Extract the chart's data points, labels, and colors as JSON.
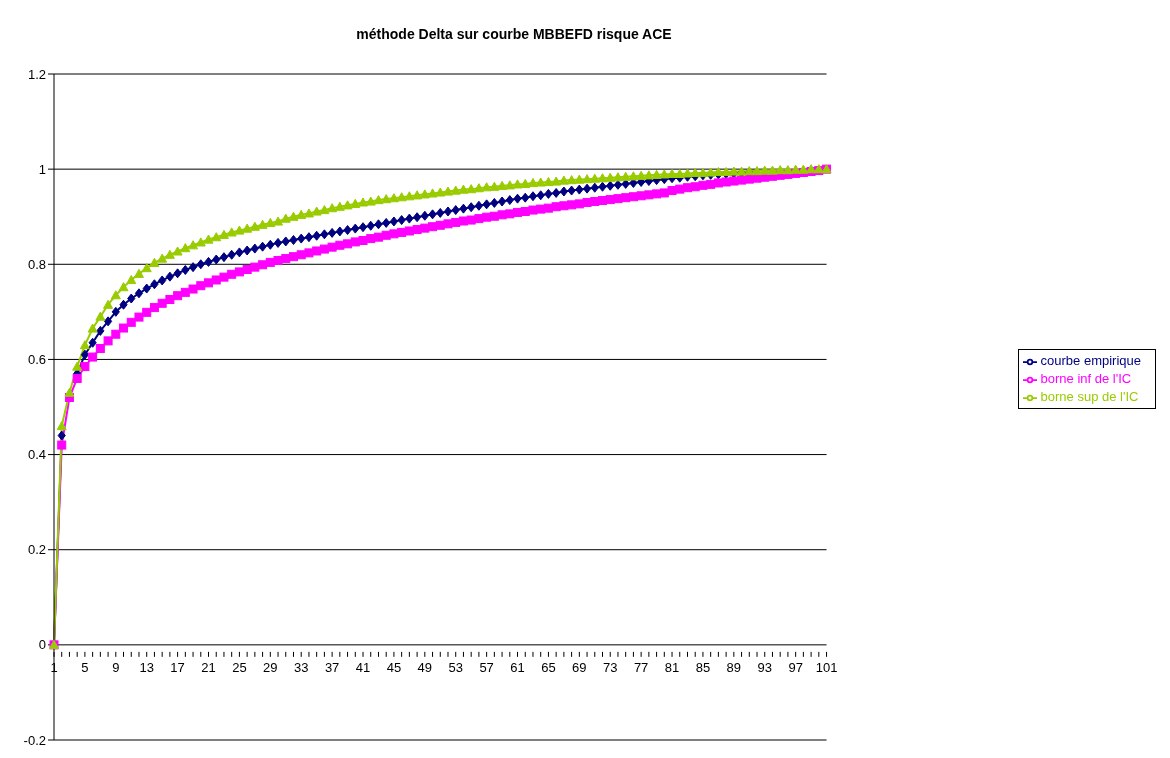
{
  "chart_data": {
    "type": "line",
    "title": "méthode Delta sur courbe MBBEFD risque ACE",
    "categories": [
      "1",
      null,
      null,
      null,
      "5",
      null,
      null,
      null,
      "9",
      null,
      null,
      null,
      "13",
      null,
      null,
      null,
      "17",
      null,
      null,
      null,
      "21",
      null,
      null,
      null,
      "25",
      null,
      null,
      null,
      "29",
      null,
      null,
      null,
      "33",
      null,
      null,
      null,
      "37",
      null,
      null,
      null,
      "41",
      null,
      null,
      null,
      "45",
      null,
      null,
      null,
      "49",
      null,
      null,
      null,
      "53",
      null,
      null,
      null,
      "57",
      null,
      null,
      null,
      "61",
      null,
      null,
      null,
      "65",
      null,
      null,
      null,
      "69",
      null,
      null,
      null,
      "73",
      null,
      null,
      null,
      "77",
      null,
      null,
      null,
      "81",
      null,
      null,
      null,
      "85",
      null,
      null,
      null,
      "89",
      null,
      null,
      null,
      "93",
      null,
      null,
      null,
      "97",
      null,
      null,
      null,
      "101"
    ],
    "series": [
      {
        "name": "courbe empirique",
        "color": "#000080",
        "marker": "diamond",
        "values": [
          0,
          0.44,
          null,
          0.57,
          0.61,
          0.635,
          0.66,
          0.68,
          0.7,
          0.715,
          0.728,
          0.739,
          0.749,
          0.758,
          0.766,
          0.774,
          0.781,
          0.788,
          0.794,
          0.8,
          0.805,
          0.81,
          0.815,
          0.82,
          0.825,
          0.829,
          0.833,
          0.837,
          0.841,
          0.845,
          0.848,
          0.851,
          0.854,
          0.857,
          0.86,
          0.863,
          0.866,
          0.869,
          0.872,
          0.875,
          0.878,
          0.881,
          0.884,
          0.887,
          0.89,
          0.893,
          0.896,
          0.899,
          0.902,
          0.905,
          0.908,
          0.911,
          0.914,
          0.917,
          0.92,
          0.923,
          0.926,
          0.929,
          0.932,
          0.935,
          0.938,
          0.94,
          0.943,
          0.945,
          0.948,
          0.95,
          0.953,
          0.955,
          0.957,
          0.959,
          0.961,
          0.963,
          0.965,
          0.967,
          0.969,
          0.971,
          0.973,
          0.975,
          0.977,
          0.979,
          0.981,
          0.982,
          0.984,
          0.985,
          0.987,
          0.988,
          0.989,
          0.99,
          0.991,
          0.992,
          0.993,
          null,
          null,
          null,
          null,
          null,
          null,
          null,
          null,
          null,
          null
        ]
      },
      {
        "name": "borne inf de l'IC",
        "color": "#ff00ff",
        "marker": "square",
        "values": [
          0,
          0.42,
          0.52,
          0.56,
          0.585,
          0.605,
          0.623,
          0.639,
          0.653,
          0.666,
          0.678,
          0.689,
          0.699,
          0.709,
          0.718,
          0.726,
          0.734,
          0.741,
          0.748,
          0.755,
          0.761,
          0.767,
          0.773,
          0.779,
          0.784,
          0.789,
          0.794,
          0.799,
          0.804,
          0.808,
          0.812,
          0.816,
          0.82,
          0.824,
          0.828,
          0.832,
          0.836,
          0.84,
          0.843,
          0.847,
          0.85,
          0.854,
          0.857,
          0.861,
          0.864,
          0.867,
          0.87,
          0.873,
          0.876,
          0.879,
          0.882,
          0.885,
          0.888,
          0.891,
          0.893,
          0.896,
          0.899,
          0.901,
          0.904,
          0.906,
          0.909,
          0.911,
          0.914,
          0.916,
          0.918,
          0.921,
          0.923,
          0.925,
          0.927,
          0.93,
          0.932,
          0.934,
          0.936,
          0.938,
          0.94,
          0.942,
          0.944,
          0.946,
          0.948,
          0.95,
          0.955,
          0.958,
          0.961,
          0.963,
          0.966,
          0.968,
          0.971,
          0.973,
          0.975,
          0.977,
          0.979,
          0.981,
          0.983,
          0.985,
          0.987,
          0.989,
          0.991,
          0.993,
          0.995,
          0.997,
          1
        ]
      },
      {
        "name": "borne sup de l'IC",
        "color": "#99cc00",
        "marker": "triangle",
        "values": [
          0,
          0.46,
          0.53,
          0.585,
          0.63,
          0.665,
          0.69,
          0.715,
          0.735,
          0.752,
          0.767,
          0.78,
          0.792,
          0.803,
          0.812,
          0.82,
          0.827,
          0.834,
          0.84,
          0.846,
          0.852,
          0.857,
          0.862,
          0.867,
          0.871,
          0.875,
          0.879,
          0.883,
          0.887,
          0.89,
          0.896,
          0.9,
          0.904,
          0.907,
          0.911,
          0.914,
          0.918,
          0.921,
          0.924,
          0.927,
          0.93,
          0.932,
          0.935,
          0.937,
          0.939,
          0.941,
          0.943,
          0.945,
          0.947,
          0.949,
          0.951,
          0.953,
          0.955,
          0.957,
          0.958,
          0.96,
          0.962,
          0.963,
          0.965,
          0.966,
          0.968,
          0.969,
          0.971,
          0.972,
          0.973,
          0.974,
          0.976,
          0.977,
          0.978,
          0.979,
          0.98,
          0.981,
          0.982,
          0.983,
          0.984,
          0.985,
          0.986,
          0.987,
          0.988,
          0.989,
          0.99,
          0.99,
          0.991,
          0.992,
          0.992,
          0.993,
          0.994,
          0.994,
          0.995,
          0.995,
          0.996,
          0.996,
          0.997,
          0.997,
          0.998,
          0.998,
          0.999,
          0.999,
          1,
          1,
          1
        ]
      }
    ],
    "ylim": [
      -0.2,
      1.2
    ],
    "yticks": [
      -0.2,
      0,
      0.2,
      0.4,
      0.6,
      0.8,
      1,
      1.2
    ],
    "grid": "y",
    "legend": "right",
    "line_style": "solid"
  }
}
